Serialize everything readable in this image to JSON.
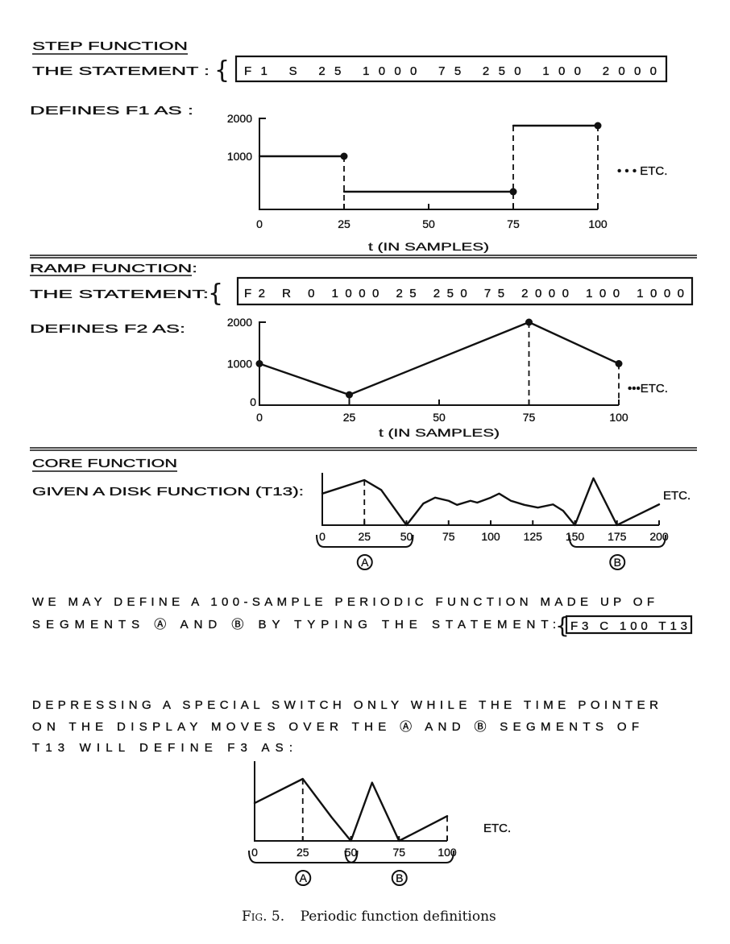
{
  "step": {
    "heading": "STEP FUNCTION",
    "statement_label": "THE STATEMENT :",
    "statement": "F1   S   25   1000   75   250   100   2000",
    "defines": "DEFINES F1 AS :",
    "etc": "• • • ETC.",
    "xlabel": "t (IN SAMPLES)"
  },
  "ramp": {
    "heading": "RAMP FUNCTION:",
    "statement_label": "THE STATEMENT:",
    "statement": "F2   R   0   1000   25  250  75  2000  100  1000",
    "defines": "DEFINES F2 AS:",
    "etc": "•••ETC.",
    "xlabel": "t (IN SAMPLES)"
  },
  "core": {
    "heading": "CORE FUNCTION",
    "given": "GIVEN A DISK FUNCTION (T13):",
    "etc": "ETC.",
    "segment_a": "A",
    "segment_b": "B",
    "para1_line1": "WE MAY DEFINE A 100-SAMPLE PERIODIC FUNCTION MADE UP OF",
    "para1_line2": "SEGMENTS Ⓐ AND Ⓑ BY TYPING THE STATEMENT:",
    "statement": "F3 C 100 T13",
    "para2_line1": "DEPRESSING A SPECIAL SWITCH ONLY WHILE THE TIME POINTER",
    "para2_line2": "ON THE DISPLAY MOVES OVER THE Ⓐ AND Ⓑ SEGMENTS OF",
    "para2_line3": "T13 WILL DEFINE F3 AS:",
    "result_etc": "ETC."
  },
  "caption": {
    "label": "Fig. 5.",
    "text": "Periodic function definitions"
  },
  "chart_data": [
    {
      "type": "line",
      "name_printed": "F1",
      "style": "step",
      "xlabel": "t (IN SAMPLES)",
      "x_ticks": [
        0,
        25,
        50,
        75,
        100
      ],
      "y_ticks": [
        1000,
        2000
      ],
      "xlim": [
        0,
        100
      ],
      "ylim": [
        0,
        2000
      ],
      "segments": [
        {
          "x_start": 0,
          "x_end": 25,
          "y": 1000
        },
        {
          "x_start": 25,
          "x_end": 75,
          "y": 250
        },
        {
          "x_start": 75,
          "x_end": 100,
          "y": 2000
        }
      ]
    },
    {
      "type": "line",
      "name_printed": "F2",
      "style": "ramp",
      "xlabel": "t (IN SAMPLES)",
      "x_ticks": [
        0,
        25,
        50,
        75,
        100
      ],
      "y_ticks": [
        0,
        1000,
        2000
      ],
      "xlim": [
        0,
        100
      ],
      "ylim": [
        0,
        2000
      ],
      "x": [
        0,
        25,
        75,
        100
      ],
      "y": [
        1000,
        250,
        2000,
        1000
      ]
    },
    {
      "type": "line",
      "name_printed": "T13",
      "x_ticks": [
        0,
        25,
        50,
        75,
        100,
        125,
        150,
        175,
        200
      ],
      "xlim": [
        0,
        200
      ],
      "ylim": [
        0,
        1.1
      ],
      "x": [
        0,
        25,
        35,
        50,
        60,
        67,
        75,
        80,
        88,
        92,
        100,
        105,
        112,
        120,
        128,
        137,
        143,
        150,
        161,
        175,
        182,
        200
      ],
      "y": [
        0.7,
        1.0,
        0.78,
        0.0,
        0.48,
        0.61,
        0.54,
        0.45,
        0.54,
        0.5,
        0.61,
        0.7,
        0.54,
        0.45,
        0.39,
        0.46,
        0.32,
        0.0,
        1.04,
        0.0,
        0.13,
        0.46
      ],
      "segments": [
        {
          "label": "A",
          "x_start": 0,
          "x_end": 50
        },
        {
          "label": "B",
          "x_start": 150,
          "x_end": 200
        }
      ]
    },
    {
      "type": "line",
      "name_printed": "F3",
      "x_ticks": [
        0,
        25,
        50,
        75,
        100
      ],
      "xlim": [
        0,
        100
      ],
      "ylim": [
        0,
        1.1
      ],
      "x": [
        0,
        25,
        40,
        50,
        61,
        75,
        100
      ],
      "y": [
        0.61,
        1.0,
        0.38,
        0.0,
        0.94,
        0.0,
        0.4
      ],
      "segments": [
        {
          "label": "A",
          "x_start": 0,
          "x_end": 50
        },
        {
          "label": "B",
          "x_start": 50,
          "x_end": 100
        }
      ]
    }
  ]
}
